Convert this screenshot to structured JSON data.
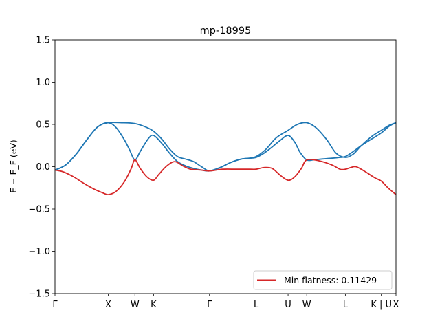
{
  "chart_data": {
    "type": "line",
    "title": "mp-18995",
    "xlabel": "",
    "ylabel": "E − E_F (eV)",
    "ylim": [
      -1.5,
      1.5
    ],
    "yticks": [
      1.5,
      1.0,
      0.5,
      0.0,
      -0.5,
      -1.0,
      -1.5
    ],
    "ytick_labels": [
      "1.5",
      "1.0",
      "0.5",
      "0.0",
      "−0.5",
      "−1.0",
      "−1.5"
    ],
    "xlim": [
      0,
      12.8
    ],
    "xticks": [
      {
        "label": "Γ",
        "x": 0
      },
      {
        "label": "X",
        "x": 2.0
      },
      {
        "label": "W",
        "x": 3.0
      },
      {
        "label": "K",
        "x": 3.7
      },
      {
        "label": "Γ",
        "x": 5.8
      },
      {
        "label": "L",
        "x": 7.55
      },
      {
        "label": "U",
        "x": 8.75
      },
      {
        "label": "W",
        "x": 9.45
      },
      {
        "label": "L",
        "x": 10.9
      },
      {
        "label": "K | U",
        "x": 12.25
      },
      {
        "label": "X",
        "x": 12.8
      }
    ],
    "grid": false,
    "legend": {
      "position": "lower-right",
      "entries": [
        {
          "label": "Min flatness: 0.11429",
          "color": "#d62728"
        }
      ]
    },
    "series": [
      {
        "color": "#1f77b4",
        "points": [
          [
            0,
            -0.04
          ],
          [
            0.4,
            0.02
          ],
          [
            0.8,
            0.15
          ],
          [
            1.2,
            0.32
          ],
          [
            1.6,
            0.47
          ],
          [
            2.0,
            0.52
          ],
          [
            2.3,
            0.46
          ],
          [
            2.6,
            0.32
          ],
          [
            2.8,
            0.2
          ],
          [
            3.0,
            0.08
          ],
          [
            3.2,
            0.18
          ],
          [
            3.5,
            0.33
          ],
          [
            3.7,
            0.37
          ],
          [
            4.0,
            0.28
          ],
          [
            4.3,
            0.16
          ],
          [
            4.6,
            0.06
          ],
          [
            4.9,
            0.01
          ],
          [
            5.2,
            -0.02
          ],
          [
            5.5,
            -0.04
          ],
          [
            5.8,
            -0.05
          ],
          [
            6.2,
            -0.01
          ],
          [
            6.6,
            0.05
          ],
          [
            7.0,
            0.09
          ],
          [
            7.3,
            0.1
          ],
          [
            7.55,
            0.11
          ],
          [
            7.8,
            0.15
          ],
          [
            8.1,
            0.22
          ],
          [
            8.45,
            0.31
          ],
          [
            8.75,
            0.37
          ],
          [
            9.0,
            0.29
          ],
          [
            9.2,
            0.17
          ],
          [
            9.45,
            0.08
          ],
          [
            9.7,
            0.08
          ],
          [
            10.0,
            0.09
          ],
          [
            10.4,
            0.1
          ],
          [
            10.7,
            0.11
          ],
          [
            10.9,
            0.12
          ],
          [
            11.2,
            0.18
          ],
          [
            11.5,
            0.25
          ],
          [
            11.9,
            0.33
          ],
          [
            12.25,
            0.4
          ],
          [
            12.55,
            0.48
          ],
          [
            12.8,
            0.52
          ]
        ]
      },
      {
        "color": "#1f77b4",
        "points": [
          [
            0,
            -0.04
          ],
          [
            0.4,
            0.02
          ],
          [
            0.8,
            0.15
          ],
          [
            1.2,
            0.32
          ],
          [
            1.6,
            0.47
          ],
          [
            2.0,
            0.52
          ],
          [
            2.5,
            0.52
          ],
          [
            3.0,
            0.51
          ],
          [
            3.4,
            0.47
          ],
          [
            3.7,
            0.42
          ],
          [
            4.0,
            0.33
          ],
          [
            4.3,
            0.21
          ],
          [
            4.6,
            0.12
          ],
          [
            4.9,
            0.09
          ],
          [
            5.2,
            0.06
          ],
          [
            5.5,
            0.0
          ],
          [
            5.8,
            -0.05
          ],
          [
            6.2,
            -0.01
          ],
          [
            6.6,
            0.05
          ],
          [
            7.0,
            0.09
          ],
          [
            7.3,
            0.1
          ],
          [
            7.55,
            0.12
          ],
          [
            7.9,
            0.2
          ],
          [
            8.3,
            0.34
          ],
          [
            8.75,
            0.43
          ],
          [
            9.1,
            0.5
          ],
          [
            9.45,
            0.52
          ],
          [
            9.8,
            0.46
          ],
          [
            10.2,
            0.32
          ],
          [
            10.55,
            0.16
          ],
          [
            10.9,
            0.11
          ],
          [
            11.2,
            0.15
          ],
          [
            11.5,
            0.25
          ],
          [
            11.9,
            0.36
          ],
          [
            12.25,
            0.43
          ],
          [
            12.55,
            0.49
          ],
          [
            12.8,
            0.52
          ]
        ]
      },
      {
        "color": "#d62728",
        "points": [
          [
            0,
            -0.04
          ],
          [
            0.3,
            -0.06
          ],
          [
            0.7,
            -0.12
          ],
          [
            1.1,
            -0.2
          ],
          [
            1.5,
            -0.27
          ],
          [
            1.8,
            -0.31
          ],
          [
            2.0,
            -0.33
          ],
          [
            2.3,
            -0.29
          ],
          [
            2.6,
            -0.18
          ],
          [
            2.85,
            -0.03
          ],
          [
            3.0,
            0.08
          ],
          [
            3.2,
            -0.02
          ],
          [
            3.45,
            -0.12
          ],
          [
            3.7,
            -0.16
          ],
          [
            3.9,
            -0.09
          ],
          [
            4.2,
            0.01
          ],
          [
            4.5,
            0.06
          ],
          [
            4.8,
            0.01
          ],
          [
            5.1,
            -0.03
          ],
          [
            5.5,
            -0.04
          ],
          [
            5.8,
            -0.05
          ],
          [
            6.3,
            -0.03
          ],
          [
            6.8,
            -0.03
          ],
          [
            7.3,
            -0.03
          ],
          [
            7.55,
            -0.03
          ],
          [
            7.85,
            -0.01
          ],
          [
            8.15,
            -0.02
          ],
          [
            8.45,
            -0.1
          ],
          [
            8.75,
            -0.16
          ],
          [
            9.0,
            -0.12
          ],
          [
            9.25,
            -0.02
          ],
          [
            9.45,
            0.08
          ],
          [
            9.9,
            0.07
          ],
          [
            10.4,
            0.02
          ],
          [
            10.7,
            -0.03
          ],
          [
            10.9,
            -0.03
          ],
          [
            11.1,
            -0.01
          ],
          [
            11.3,
            0.0
          ],
          [
            11.6,
            -0.05
          ],
          [
            12.0,
            -0.13
          ],
          [
            12.25,
            -0.17
          ],
          [
            12.5,
            -0.25
          ],
          [
            12.8,
            -0.33
          ]
        ]
      }
    ]
  }
}
